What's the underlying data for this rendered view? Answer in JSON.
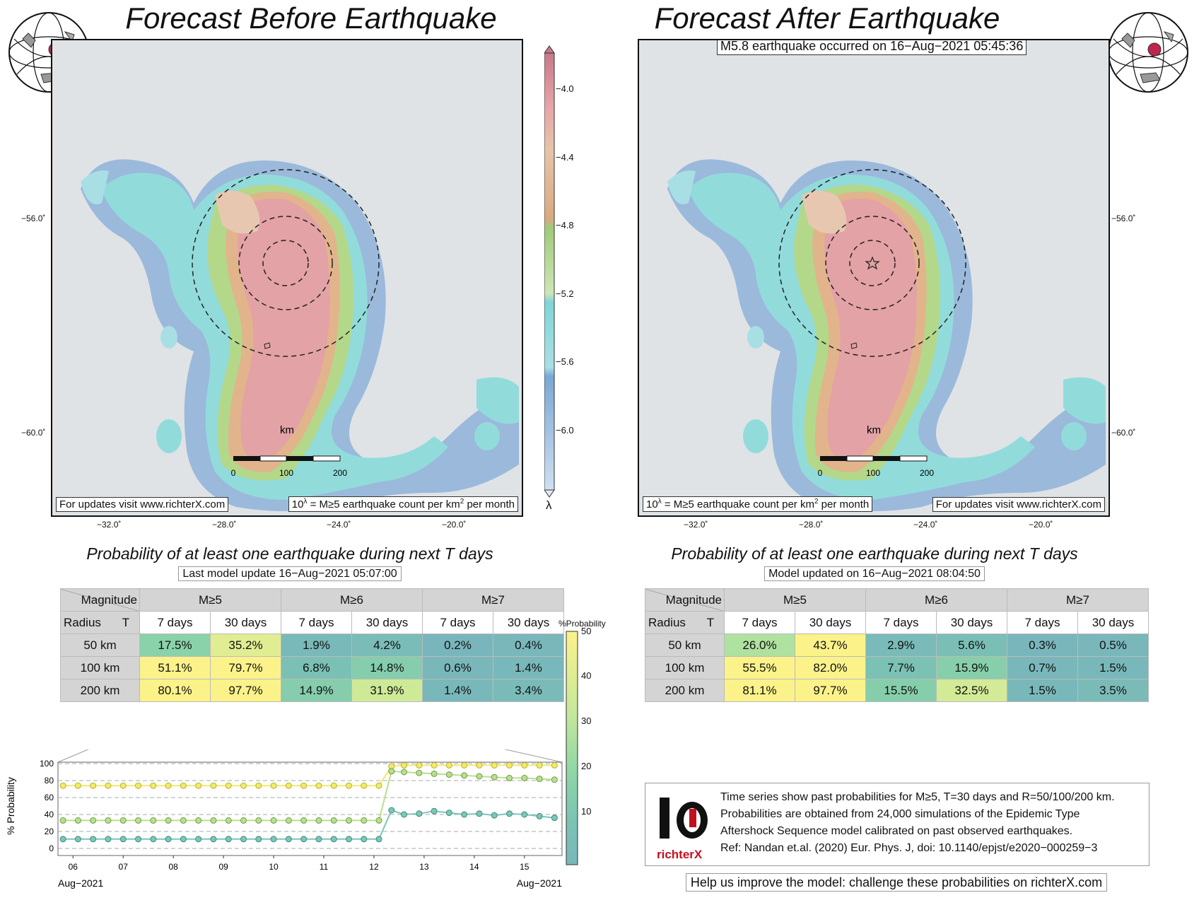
{
  "left": {
    "title": "Forecast Before Earthquake",
    "footer_left": "For updates visit www.richterX.com",
    "footer_right_pre": "10",
    "footer_right_sup": "λ",
    "footer_right_post": " = M≥5 earthquake count per km",
    "footer_right_sup2": "2",
    "footer_right_end": " per month",
    "lat_labels": [
      "−56.0˚",
      "−60.0˚"
    ],
    "lon_labels": [
      "−32.0˚",
      "−28.0˚",
      "−24.0˚",
      "−20.0˚"
    ],
    "scale_label": "km",
    "scale_ticks": [
      "0",
      "100",
      "200"
    ]
  },
  "right": {
    "title": "Forecast After Earthquake",
    "event_label": "M5.8 earthquake occurred on 16−Aug−2021 05:45:36",
    "footer_left_pre": "10",
    "footer_left_sup": "λ",
    "footer_left_post": " = M≥5 earthquake count per km",
    "footer_left_sup2": "2",
    "footer_left_end": " per month",
    "footer_right": "For updates visit www.richterX.com",
    "lat_labels": [
      "−56.0˚",
      "−60.0˚"
    ],
    "lon_labels": [
      "−32.0˚",
      "−28.0˚",
      "−24.0˚",
      "−20.0˚"
    ],
    "scale_label": "km",
    "scale_ticks": [
      "0",
      "100",
      "200"
    ]
  },
  "lambda_colorbar": {
    "ticks": [
      "−4.0",
      "−4.4",
      "−4.8",
      "−5.2",
      "−5.6",
      "−6.0"
    ],
    "symbol": "λ",
    "colors": [
      "#c8798a",
      "#e7a3a7",
      "#e6c4aa",
      "#d9aa80",
      "#9dcc78",
      "#cfe5b6",
      "#7fd6d6",
      "#a9dfe6",
      "#7aa7d6",
      "#cfe0f0"
    ]
  },
  "left_table": {
    "subtitle": "Probability of at least one earthquake during next T days",
    "update": "Last model update 16−Aug−2021 05:07:00",
    "magnitude_label": "Magnitude",
    "radius_label": "Radius",
    "t_label": "T",
    "magnitudes": [
      "M≥5",
      "M≥6",
      "M≥7"
    ],
    "periods": [
      "7 days",
      "30 days",
      "7 days",
      "30 days",
      "7 days",
      "30 days"
    ],
    "rows": [
      {
        "radius": "50 km",
        "values": [
          "17.5%",
          "35.2%",
          "1.9%",
          "4.2%",
          "0.2%",
          "0.4%"
        ]
      },
      {
        "radius": "100 km",
        "values": [
          "51.1%",
          "79.7%",
          "6.8%",
          "14.8%",
          "0.6%",
          "1.4%"
        ]
      },
      {
        "radius": "200 km",
        "values": [
          "80.1%",
          "97.7%",
          "14.9%",
          "31.9%",
          "1.4%",
          "3.4%"
        ]
      }
    ]
  },
  "right_table": {
    "subtitle": "Probability of at least one earthquake during next T days",
    "update": "Model updated on 16−Aug−2021 08:04:50",
    "magnitude_label": "Magnitude",
    "radius_label": "Radius",
    "t_label": "T",
    "magnitudes": [
      "M≥5",
      "M≥6",
      "M≥7"
    ],
    "periods": [
      "7 days",
      "30 days",
      "7 days",
      "30 days",
      "7 days",
      "30 days"
    ],
    "rows": [
      {
        "radius": "50 km",
        "values": [
          "26.0%",
          "43.7%",
          "2.9%",
          "5.6%",
          "0.3%",
          "0.5%"
        ]
      },
      {
        "radius": "100 km",
        "values": [
          "55.5%",
          "82.0%",
          "7.7%",
          "15.9%",
          "0.7%",
          "1.5%"
        ]
      },
      {
        "radius": "200 km",
        "values": [
          "81.1%",
          "97.7%",
          "15.5%",
          "32.5%",
          "1.5%",
          "3.5%"
        ]
      }
    ]
  },
  "prob_colorbar": {
    "title": "%Probability",
    "ticks": [
      "50",
      "40",
      "30",
      "20",
      "10"
    ],
    "colors": [
      "#fbf28a",
      "#c5e89a",
      "#8fd6a6",
      "#7cc4b2",
      "#79b6bb"
    ]
  },
  "info": {
    "logo_text": "richterX",
    "lines": [
      "Time series show past probabilities for M≥5, T=30 days and R=50/100/200 km.",
      "Probabilities are obtained from 24,000 simulations of the Epidemic Type",
      "Aftershock Sequence model calibrated on past observed earthquakes.",
      "Ref: Nandan et.al. (2020) Eur. Phys. J, doi: 10.1140/epjst/e2020−000259−3"
    ],
    "help": "Help us improve the model: challenge these probabilities on richterX.com"
  },
  "chart_data": {
    "type": "line",
    "ylabel": "% Probability",
    "ylim": [
      0,
      100
    ],
    "yticks": [
      "0",
      "20",
      "40",
      "60",
      "80",
      "100"
    ],
    "xlim": [
      5.7,
      15.75
    ],
    "xtick_labels": [
      "06",
      "07",
      "08",
      "09",
      "10",
      "11",
      "12",
      "13",
      "14",
      "15"
    ],
    "x_start_label": "Aug−2021",
    "x_end_label": "Aug−2021",
    "grid": "horizontal dashed",
    "series": [
      {
        "color": "#f3ea6a",
        "stroke": "#b5b23a",
        "x": [
          5.8,
          6.1,
          6.4,
          6.7,
          7.0,
          7.3,
          7.6,
          7.9,
          8.2,
          8.5,
          8.8,
          9.1,
          9.4,
          9.7,
          10.0,
          10.3,
          10.6,
          10.9,
          11.2,
          11.5,
          11.8,
          12.1,
          12.35,
          12.6,
          12.9,
          13.2,
          13.5,
          13.8,
          14.1,
          14.4,
          14.7,
          15.0,
          15.3,
          15.6
        ],
        "y": [
          74,
          74,
          74,
          74,
          74,
          74,
          74,
          74,
          74,
          74,
          74,
          74,
          74,
          74,
          74,
          74,
          74,
          74,
          74,
          74,
          74,
          74,
          97,
          98,
          98,
          98,
          98,
          98,
          98,
          98,
          98,
          98,
          98,
          98
        ]
      },
      {
        "color": "#b9df8e",
        "stroke": "#6f9b4b",
        "x": [
          5.8,
          6.1,
          6.4,
          6.7,
          7.0,
          7.3,
          7.6,
          7.9,
          8.2,
          8.5,
          8.8,
          9.1,
          9.4,
          9.7,
          10.0,
          10.3,
          10.6,
          10.9,
          11.2,
          11.5,
          11.8,
          12.1,
          12.35,
          12.6,
          12.9,
          13.2,
          13.5,
          13.8,
          14.1,
          14.4,
          14.7,
          15.0,
          15.3,
          15.6
        ],
        "y": [
          33,
          33,
          33,
          33,
          33,
          33,
          33,
          33,
          33,
          33,
          33,
          33,
          33,
          33,
          33,
          33,
          33,
          33,
          33,
          33,
          33,
          33,
          91,
          90,
          89,
          88,
          87,
          86,
          85,
          84,
          83,
          83,
          82,
          81
        ]
      },
      {
        "color": "#7cc7b8",
        "stroke": "#3f8a82",
        "x": [
          5.8,
          6.1,
          6.4,
          6.7,
          7.0,
          7.3,
          7.6,
          7.9,
          8.2,
          8.5,
          8.8,
          9.1,
          9.4,
          9.7,
          10.0,
          10.3,
          10.6,
          10.9,
          11.2,
          11.5,
          11.8,
          12.1,
          12.35,
          12.6,
          12.9,
          13.2,
          13.5,
          13.8,
          14.1,
          14.4,
          14.7,
          15.0,
          15.3,
          15.6
        ],
        "y": [
          11,
          11,
          11,
          11,
          11,
          11,
          11,
          11,
          11,
          11,
          11,
          11,
          11,
          11,
          11,
          11,
          11,
          11,
          11,
          11,
          11,
          11,
          45,
          40,
          41,
          44,
          42,
          40,
          41,
          39,
          41,
          40,
          38,
          36
        ]
      }
    ]
  }
}
